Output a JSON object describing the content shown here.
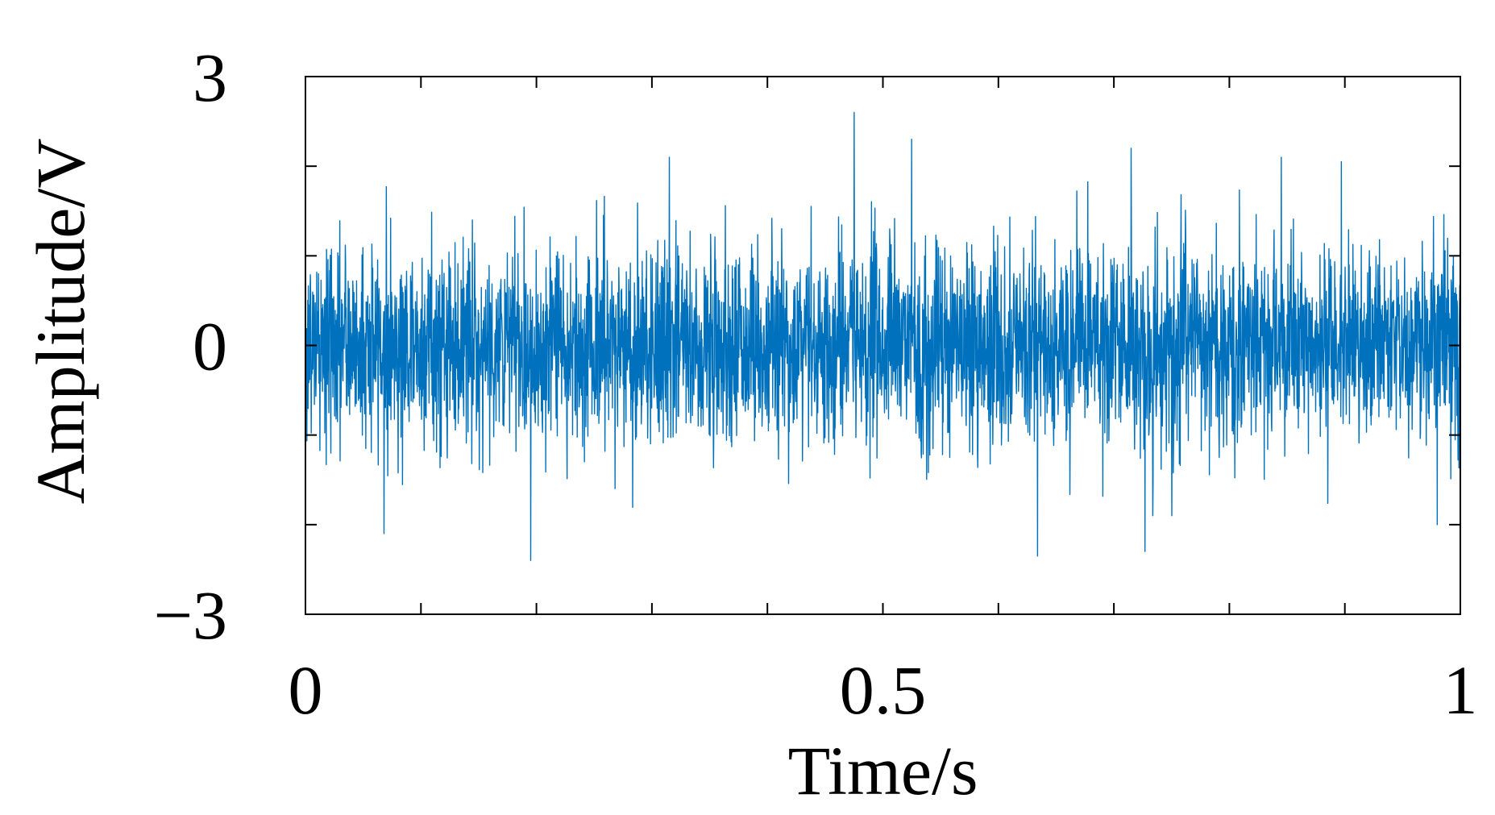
{
  "chart_data": {
    "type": "line",
    "title": "",
    "xlabel": "Time/s",
    "ylabel": "Amplitude/V",
    "xlim": [
      0,
      1
    ],
    "ylim": [
      -3,
      3
    ],
    "x_ticks": [
      0,
      0.1,
      0.2,
      0.3,
      0.4,
      0.5,
      0.6,
      0.7,
      0.8,
      0.9,
      1
    ],
    "x_tick_labels": [
      "0",
      "",
      "",
      "",
      "",
      "0.5",
      "",
      "",
      "",
      "",
      "1"
    ],
    "y_ticks": [
      -3,
      -2,
      -1,
      0,
      1,
      2,
      3
    ],
    "y_tick_labels": [
      "−3",
      "",
      "",
      "0",
      "",
      "",
      "3"
    ],
    "grid": false,
    "legend": "none",
    "series_color": "#0072BD",
    "series": [
      {
        "description_signal": "random noise",
        "sample_count": 4000,
        "rms": 0.55,
        "approx_max": 2.6,
        "approx_min": -2.4,
        "peaks": [
          {
            "x": 0.475,
            "y": 2.6
          },
          {
            "x": 0.525,
            "y": 2.3
          },
          {
            "x": 0.715,
            "y": 2.2
          },
          {
            "x": 0.315,
            "y": 2.1
          },
          {
            "x": 0.845,
            "y": 2.1
          },
          {
            "x": 0.897,
            "y": 2.05
          },
          {
            "x": 0.195,
            "y": -2.4
          },
          {
            "x": 0.634,
            "y": -2.35
          },
          {
            "x": 0.727,
            "y": -2.3
          },
          {
            "x": 0.068,
            "y": -2.1
          },
          {
            "x": 0.98,
            "y": -2.0
          }
        ]
      }
    ]
  }
}
